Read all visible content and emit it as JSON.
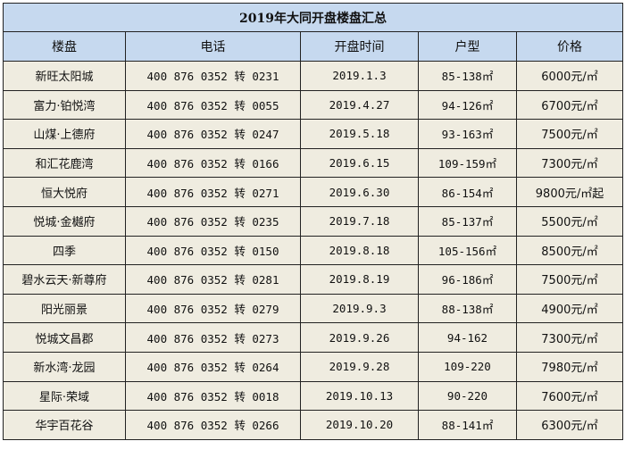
{
  "title": "2019年大同开盘楼盘汇总",
  "headers": [
    "楼盘",
    "电话",
    "开盘时间",
    "户型",
    "价格"
  ],
  "rows": [
    {
      "name": "新旺太阳城",
      "phone": "400 876 0352 转 0231",
      "date": "2019.1.3",
      "area": "85-138㎡",
      "price": "6000元/㎡"
    },
    {
      "name": "富力·铂悦湾",
      "phone": "400 876 0352 转 0055",
      "date": "2019.4.27",
      "area": "94-126㎡",
      "price": "6700元/㎡"
    },
    {
      "name": "山煤·上德府",
      "phone": "400 876 0352 转 0247",
      "date": "2019.5.18",
      "area": "93-163㎡",
      "price": "7500元/㎡"
    },
    {
      "name": "和汇花鹿湾",
      "phone": "400 876 0352 转 0166",
      "date": "2019.6.15",
      "area": "109-159㎡",
      "price": "7300元/㎡"
    },
    {
      "name": "恒大悦府",
      "phone": "400 876 0352 转 0271",
      "date": "2019.6.30",
      "area": "86-154㎡",
      "price": "9800元/㎡起"
    },
    {
      "name": "悦城·金樾府",
      "phone": "400 876 0352 转 0235",
      "date": "2019.7.18",
      "area": "85-137㎡",
      "price": "5500元/㎡"
    },
    {
      "name": "四季",
      "phone": "400 876 0352 转 0150",
      "date": "2019.8.18",
      "area": "105-156㎡",
      "price": "8500元/㎡"
    },
    {
      "name": "碧水云天·新尊府",
      "phone": "400 876 0352 转 0281",
      "date": "2019.8.19",
      "area": "96-186㎡",
      "price": "7500元/㎡"
    },
    {
      "name": "阳光丽景",
      "phone": "400 876 0352 转 0279",
      "date": "2019.9.3",
      "area": "88-138㎡",
      "price": "4900元/㎡"
    },
    {
      "name": "悦城文昌郡",
      "phone": "400 876 0352 转 0273",
      "date": "2019.9.26",
      "area": "94-162",
      "price": "7300元/㎡"
    },
    {
      "name": "新水湾·龙园",
      "phone": "400 876 0352 转 0264",
      "date": "2019.9.28",
      "area": "109-220",
      "price": "7980元/㎡"
    },
    {
      "name": "星际·荣域",
      "phone": "400 876 0352 转 0018",
      "date": "2019.10.13",
      "area": "90-220",
      "price": "7600元/㎡"
    },
    {
      "name": "华宇百花谷",
      "phone": "400 876 0352 转 0266",
      "date": "2019.10.20",
      "area": "88-141㎡",
      "price": "6300元/㎡"
    }
  ]
}
